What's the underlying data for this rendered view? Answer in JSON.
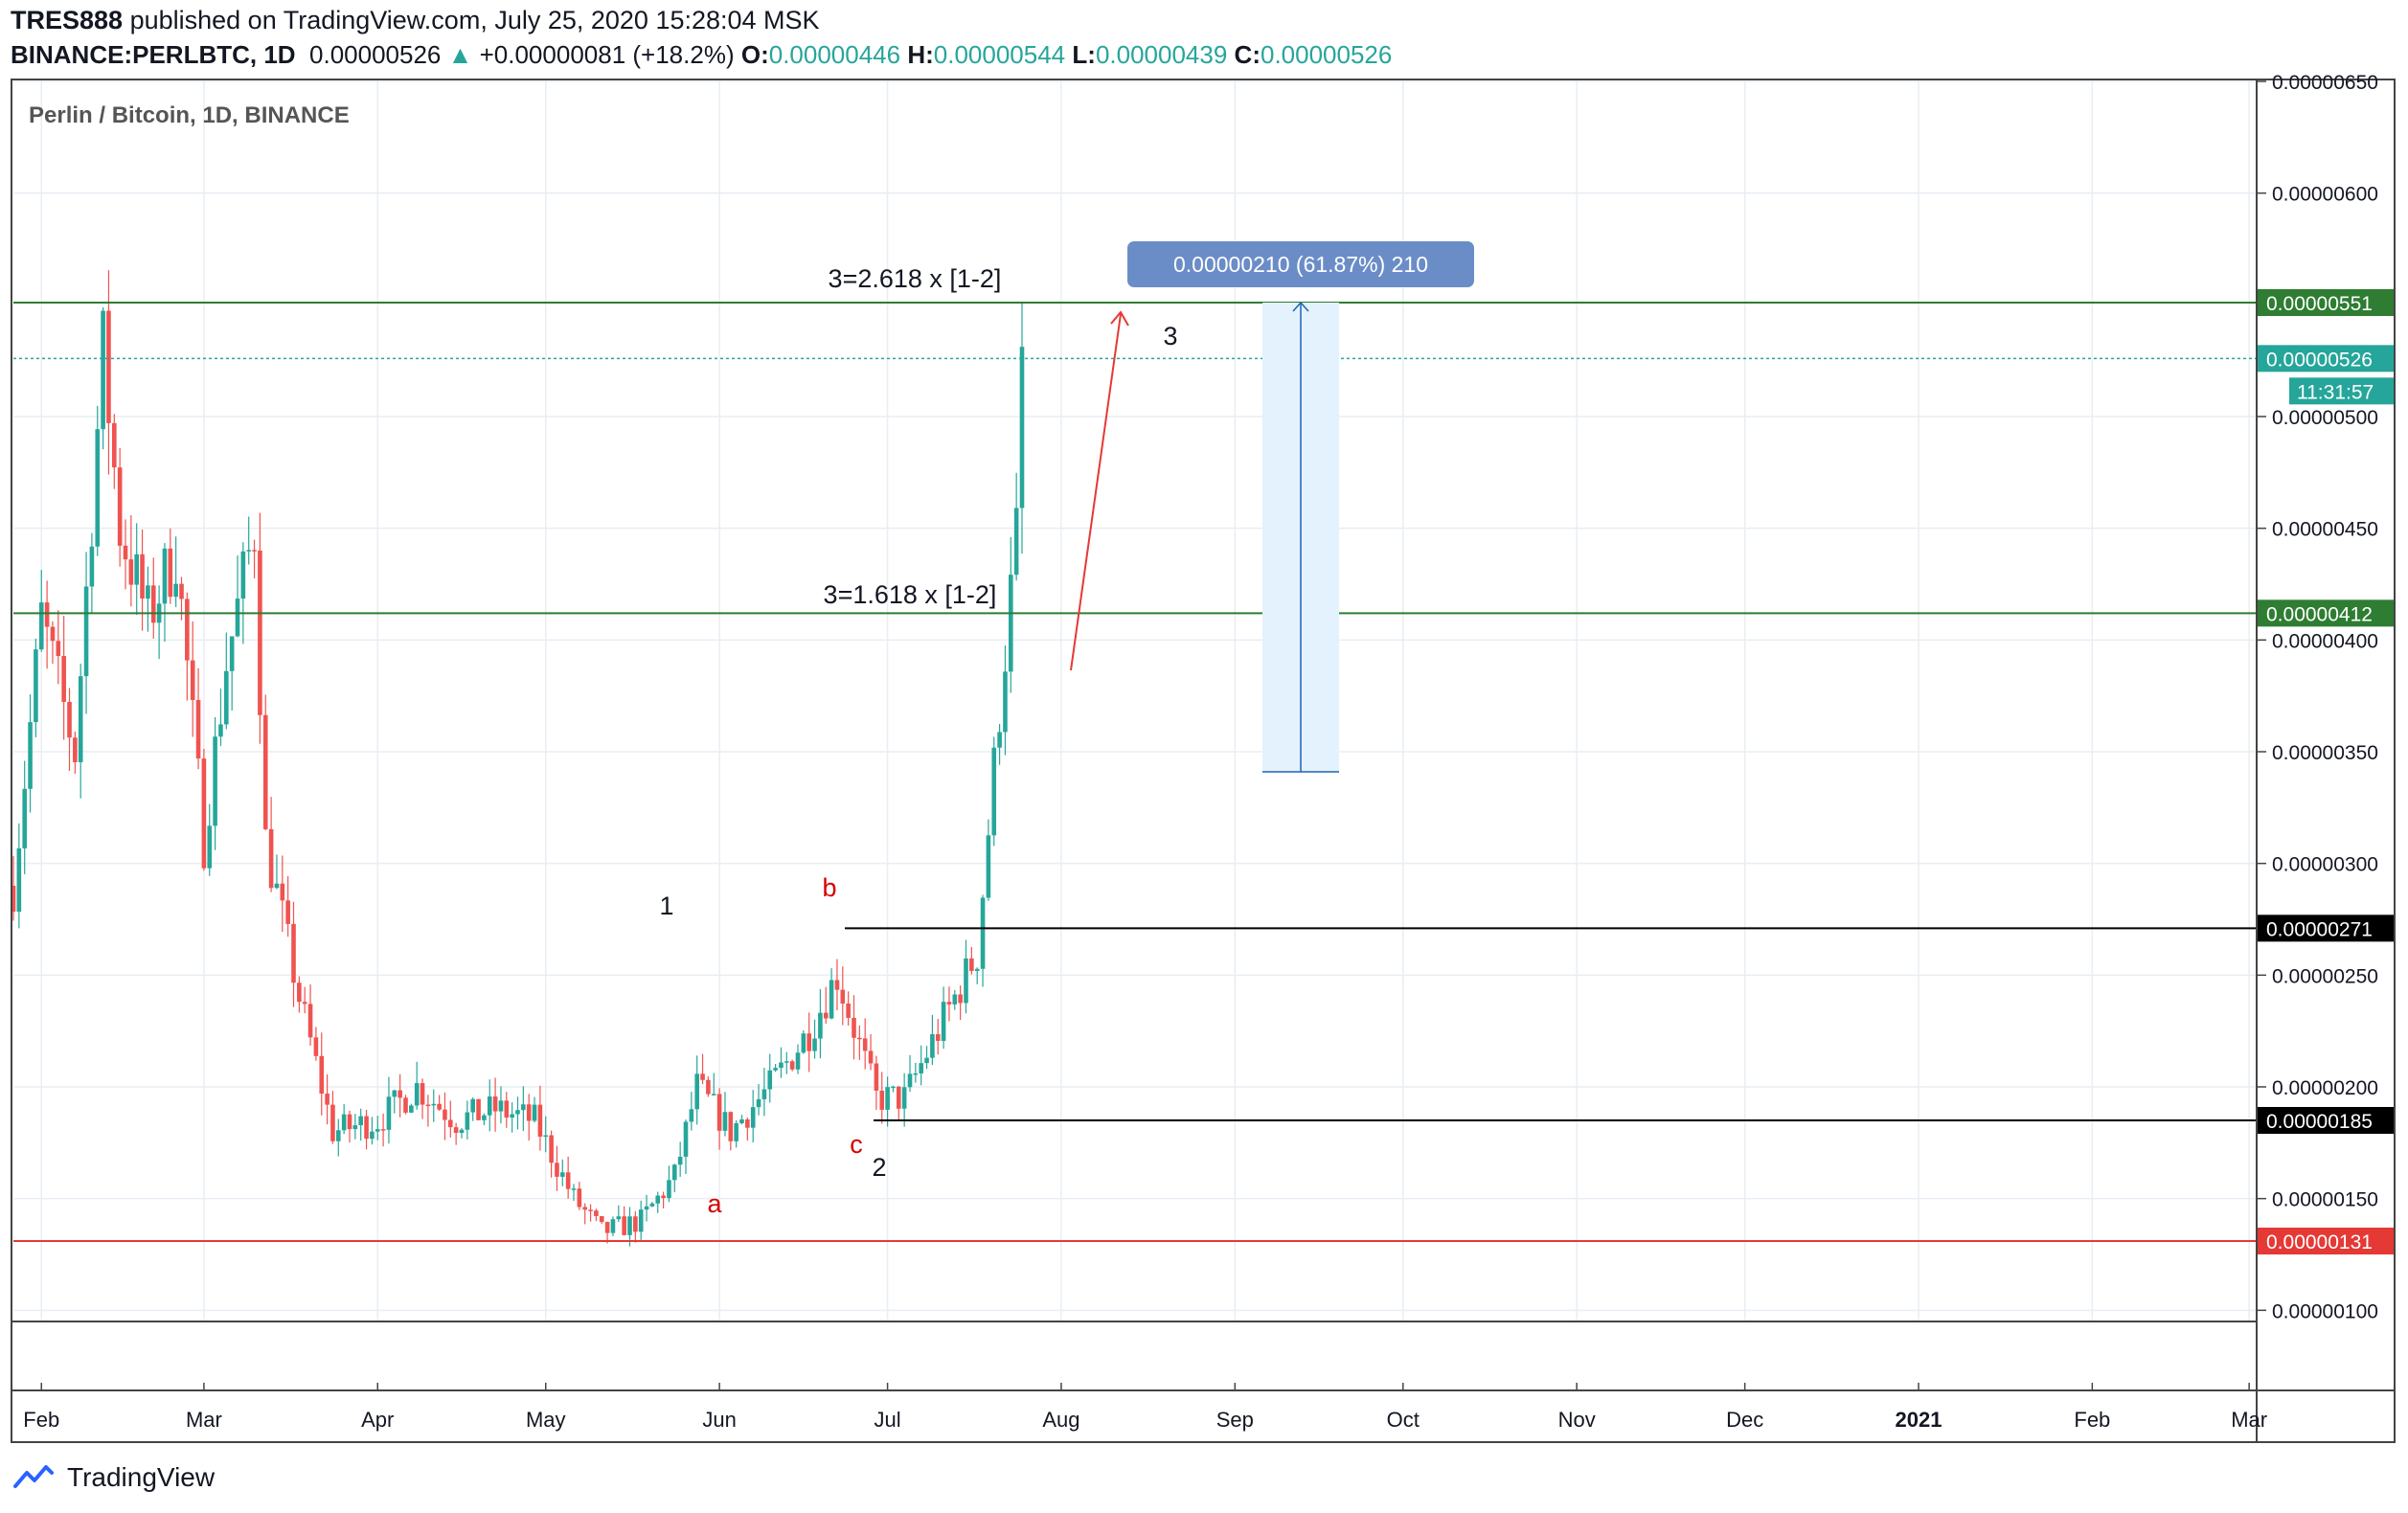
{
  "header": {
    "author": "TRES888",
    "published_text": "published on TradingView.com, July 25, 2020 15:28:04 MSK",
    "symbol": "BINANCE:PERLBTC, 1D",
    "last": "0.00000526",
    "change": "+0.00000081 (+18.2%)",
    "open_label": "O:",
    "open": "0.00000446",
    "high_label": "H:",
    "high": "0.00000544",
    "low_label": "L:",
    "low": "0.00000439",
    "close_label": "C:",
    "close": "0.00000526"
  },
  "footer": {
    "brand": "TradingView"
  },
  "colors": {
    "up": "#26a69a",
    "down": "#ef5350",
    "grid": "#e8eef4",
    "green_line": "#2e7d32",
    "red_line": "#e53935",
    "black_line": "#000000",
    "measure_fill": "#e3f2fd",
    "measure_line": "#1e63b0",
    "measure_label_bg": "#6b8dc7"
  },
  "chart_data": {
    "type": "candlestick",
    "title": "Perlin / Bitcoin, 1D, BINANCE",
    "x_ticks": [
      "Feb",
      "Mar",
      "Apr",
      "May",
      "Jun",
      "Jul",
      "Aug",
      "Sep",
      "Oct",
      "Nov",
      "Dec",
      "2021",
      "Feb",
      "Mar"
    ],
    "y_ticks": [
      "0.00000650",
      "0.00000600",
      "0.00000500",
      "0.00000450",
      "0.00000400",
      "0.00000350",
      "0.00000300",
      "0.00000250",
      "0.00000200",
      "0.00000150",
      "0.00000100"
    ],
    "ylim": [
      9.5e-07,
      6.5e-06
    ],
    "horizontal_levels": [
      {
        "price": 5.51e-06,
        "label": "0.00000551",
        "color": "green"
      },
      {
        "price": 4.12e-06,
        "label": "0.00000412",
        "color": "green"
      },
      {
        "price": 2.71e-06,
        "label": "0.00000271",
        "color": "black"
      },
      {
        "price": 1.85e-06,
        "label": "0.00000185",
        "color": "black"
      },
      {
        "price": 1.31e-06,
        "label": "0.00000131",
        "color": "red"
      }
    ],
    "last_price": {
      "label": "0.00000526",
      "countdown": "11:31:57"
    },
    "annotations": {
      "fib_high": "3=2.618 x [1-2]",
      "fib_low": "3=1.618 x [1-2]",
      "wave_1": "1",
      "wave_2": "2",
      "wave_3": "3",
      "wave_a": "a",
      "wave_b": "b",
      "wave_c": "c",
      "measure": "0.00000210 (61.87%) 210"
    },
    "close_path": [
      {
        "x": "2020-01-27",
        "y": 2.9e-06
      },
      {
        "x": "2020-02-01",
        "y": 4.1e-06
      },
      {
        "x": "2020-02-07",
        "y": 3.5e-06
      },
      {
        "x": "2020-02-12",
        "y": 5.3e-06
      },
      {
        "x": "2020-02-15",
        "y": 4.5e-06
      },
      {
        "x": "2020-02-20",
        "y": 4.1e-06
      },
      {
        "x": "2020-02-25",
        "y": 4.4e-06
      },
      {
        "x": "2020-03-01",
        "y": 3.1e-06
      },
      {
        "x": "2020-03-05",
        "y": 3.9e-06
      },
      {
        "x": "2020-03-10",
        "y": 4.5e-06
      },
      {
        "x": "2020-03-12",
        "y": 3.1e-06
      },
      {
        "x": "2020-03-18",
        "y": 2.4e-06
      },
      {
        "x": "2020-03-24",
        "y": 1.8e-06
      },
      {
        "x": "2020-04-01",
        "y": 1.85e-06
      },
      {
        "x": "2020-04-08",
        "y": 2e-06
      },
      {
        "x": "2020-04-15",
        "y": 1.85e-06
      },
      {
        "x": "2020-04-22",
        "y": 1.9e-06
      },
      {
        "x": "2020-04-29",
        "y": 1.85e-06
      },
      {
        "x": "2020-05-06",
        "y": 1.5e-06
      },
      {
        "x": "2020-05-11",
        "y": 1.35e-06
      },
      {
        "x": "2020-05-18",
        "y": 1.4e-06
      },
      {
        "x": "2020-05-24",
        "y": 1.6e-06
      },
      {
        "x": "2020-05-28",
        "y": 2e-06
      },
      {
        "x": "2020-06-03",
        "y": 1.8e-06
      },
      {
        "x": "2020-06-10",
        "y": 2e-06
      },
      {
        "x": "2020-06-17",
        "y": 2.25e-06
      },
      {
        "x": "2020-06-22",
        "y": 2.5e-06
      },
      {
        "x": "2020-06-29",
        "y": 1.95e-06
      },
      {
        "x": "2020-07-04",
        "y": 1.95e-06
      },
      {
        "x": "2020-07-10",
        "y": 2.25e-06
      },
      {
        "x": "2020-07-17",
        "y": 2.6e-06
      },
      {
        "x": "2020-07-21",
        "y": 3.7e-06
      },
      {
        "x": "2020-07-24",
        "y": 4.46e-06
      },
      {
        "x": "2020-07-25",
        "y": 5.26e-06
      }
    ]
  }
}
